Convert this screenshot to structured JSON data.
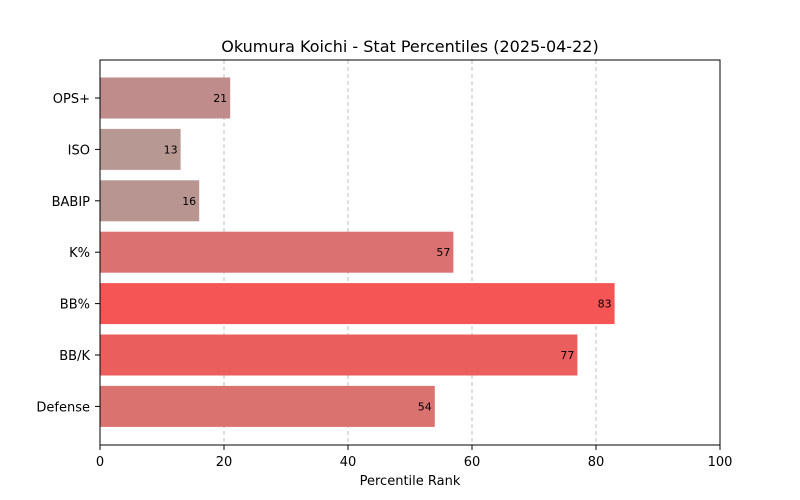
{
  "chart_data": {
    "type": "bar",
    "orientation": "horizontal",
    "title": "Okumura Koichi - Stat Percentiles (2025-04-22)",
    "xlabel": "Percentile Rank",
    "ylabel": "",
    "xlim": [
      0,
      100
    ],
    "xticks": [
      0,
      20,
      40,
      60,
      80,
      100
    ],
    "grid": "x-dashed",
    "categories": [
      "OPS+",
      "ISO",
      "BABIP",
      "K%",
      "BB%",
      "BB/K",
      "Defense"
    ],
    "values": [
      21,
      13,
      16,
      57,
      83,
      77,
      54
    ],
    "colors": [
      "#c08b8b",
      "#b89893",
      "#b99592",
      "#db7171",
      "#f55555",
      "#eb5e5e",
      "#da7270"
    ]
  }
}
